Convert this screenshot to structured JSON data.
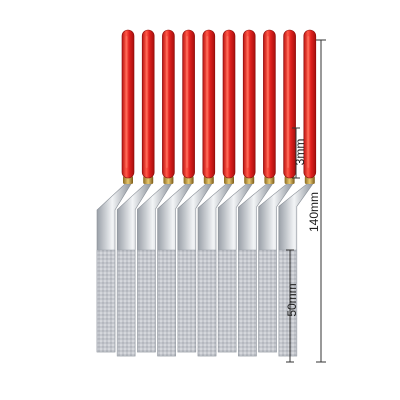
{
  "product": {
    "file_count": 10,
    "handle_color": "#e0201e",
    "handle_highlight": "#ff7a66",
    "collar_color": "#c8a048",
    "metal_color": "#c9ccd2",
    "grit_color": "#bfc2c8"
  },
  "dimensions": {
    "width_label": "3mm",
    "total_length_label": "140mm",
    "coated_length_label": "50mm"
  }
}
